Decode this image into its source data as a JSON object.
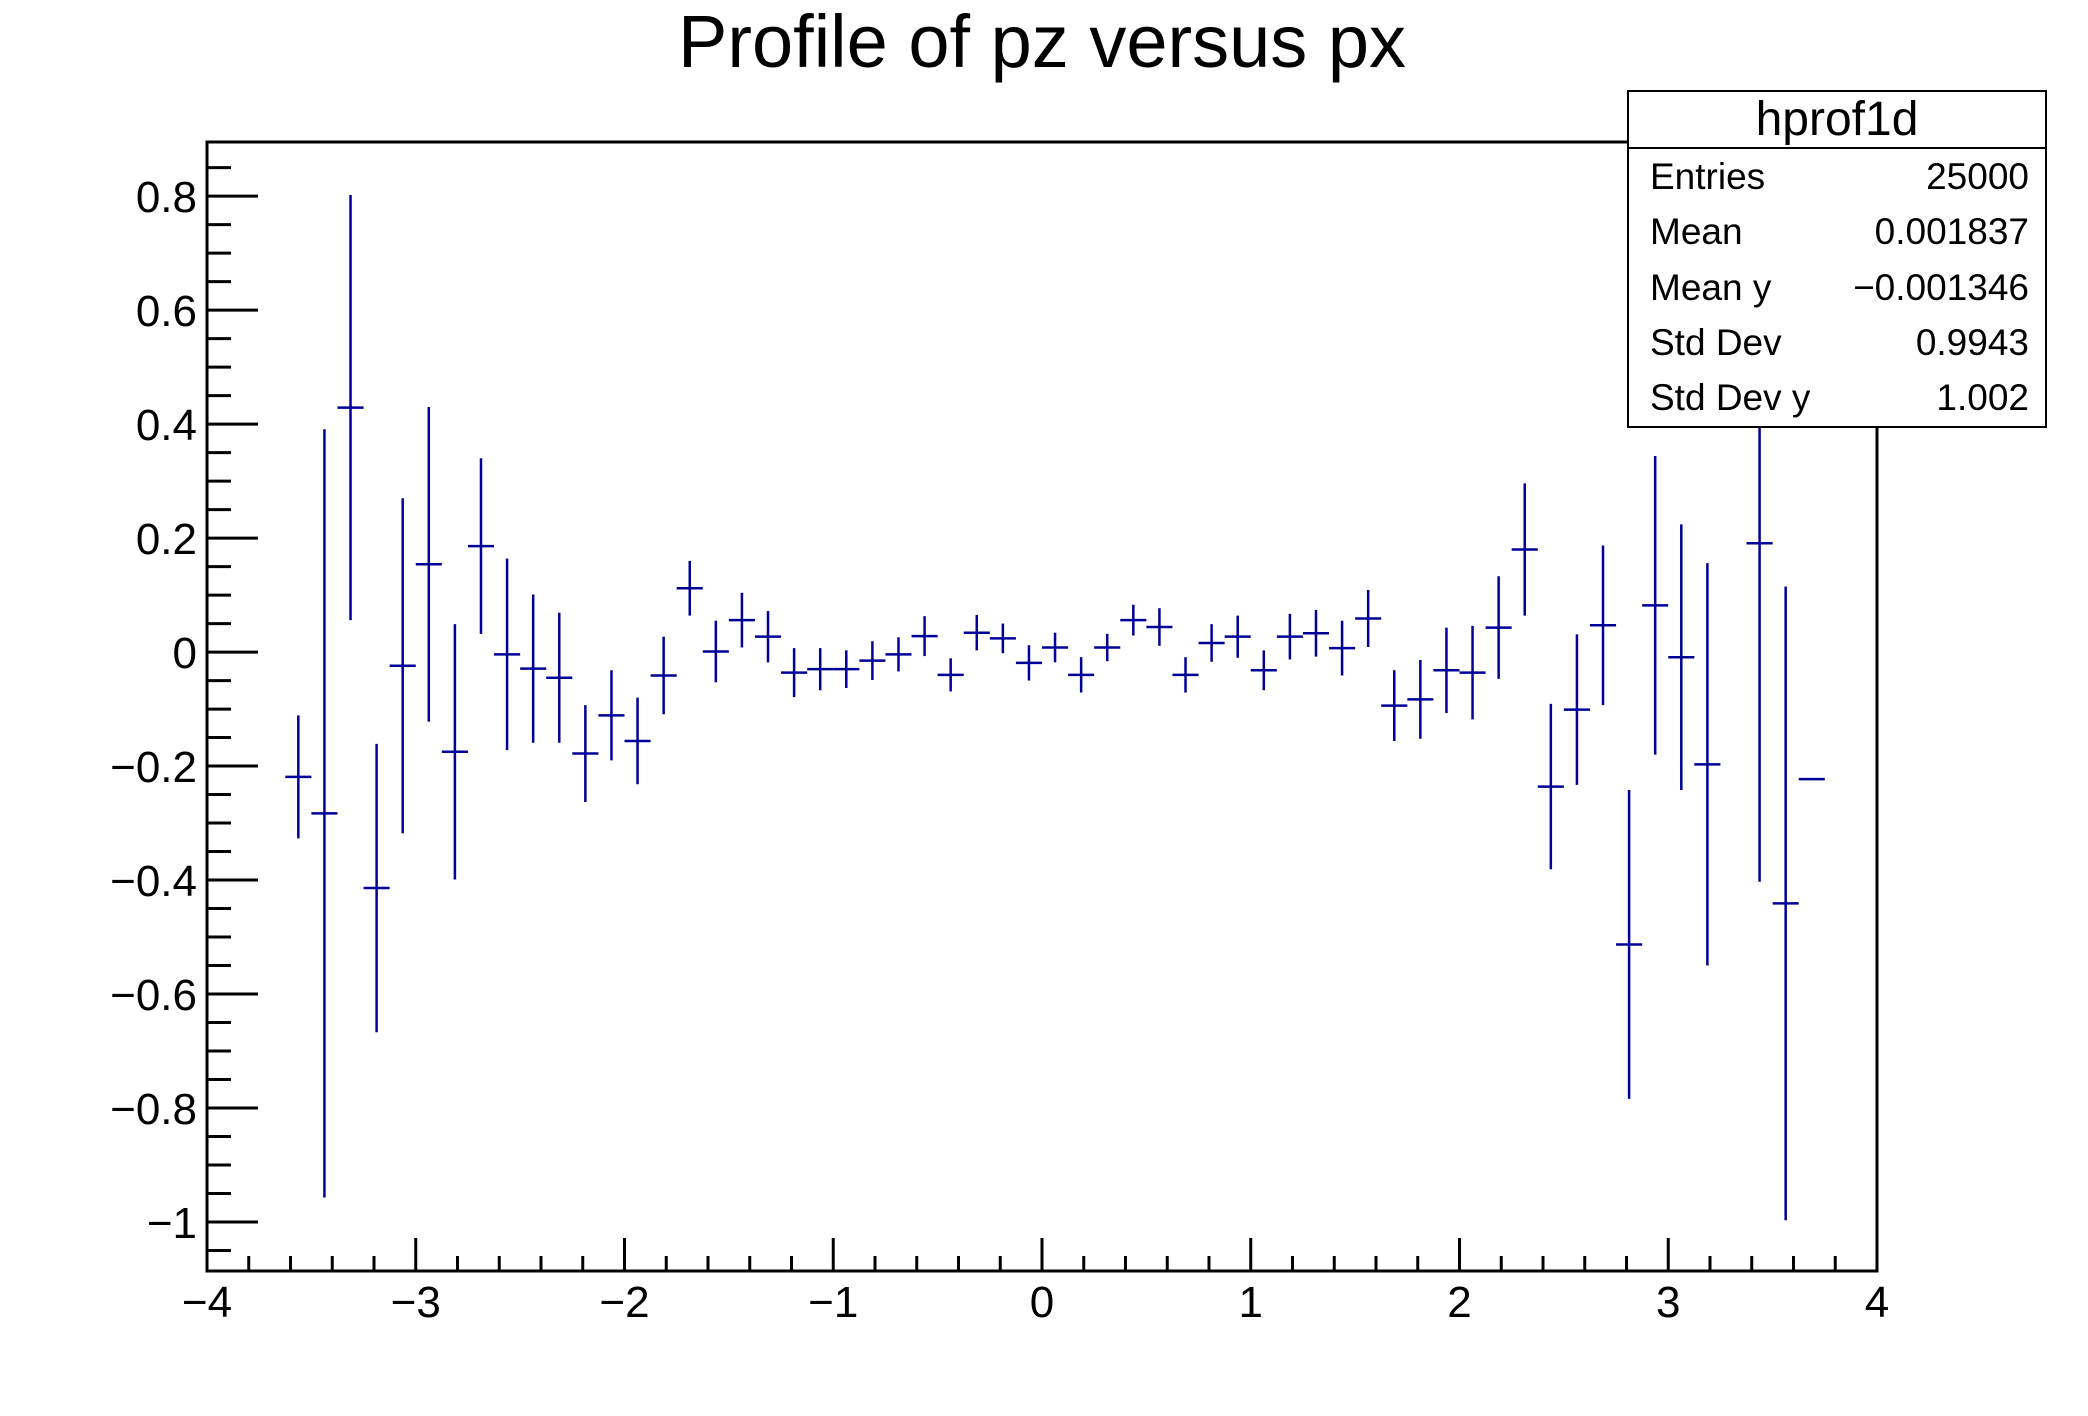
{
  "chart_data": {
    "type": "scatter",
    "subtype": "profile-histogram-with-error-bars",
    "title": "Profile of pz versus px",
    "xlabel": "",
    "ylabel": "",
    "grid": false,
    "xlim": [
      -4,
      4
    ],
    "ylim": [
      -1.086,
      0.895
    ],
    "x_minor_step": 0.2,
    "y_minor_step": 0.05,
    "bin_half_width": 0.0625,
    "series_color": "#000099",
    "x_major_ticks": [
      {
        "v": -4,
        "label": "−4"
      },
      {
        "v": -3,
        "label": "−3"
      },
      {
        "v": -2,
        "label": "−2"
      },
      {
        "v": -1,
        "label": "−1"
      },
      {
        "v": 0,
        "label": "0"
      },
      {
        "v": 1,
        "label": "1"
      },
      {
        "v": 2,
        "label": "2"
      },
      {
        "v": 3,
        "label": "3"
      },
      {
        "v": 4,
        "label": "4"
      }
    ],
    "y_major_ticks": [
      {
        "v": 0.8,
        "label": "0.8"
      },
      {
        "v": 0.6,
        "label": "0.6"
      },
      {
        "v": 0.4,
        "label": "0.4"
      },
      {
        "v": 0.2,
        "label": "0.2"
      },
      {
        "v": 0,
        "label": "0"
      },
      {
        "v": -0.2,
        "label": "−0.2"
      },
      {
        "v": -0.4,
        "label": "−0.4"
      },
      {
        "v": -0.6,
        "label": "−0.6"
      },
      {
        "v": -0.8,
        "label": "−0.8"
      },
      {
        "v": -1,
        "label": "−1"
      }
    ],
    "points": [
      {
        "x": -3.5625,
        "y": -0.219,
        "err": 0.108
      },
      {
        "x": -3.4375,
        "y": -0.283,
        "err": 0.674
      },
      {
        "x": -3.3125,
        "y": 0.429,
        "err": 0.373
      },
      {
        "x": -3.1875,
        "y": -0.414,
        "err": 0.253
      },
      {
        "x": -3.0625,
        "y": -0.024,
        "err": 0.294
      },
      {
        "x": -2.9375,
        "y": 0.154,
        "err": 0.276
      },
      {
        "x": -2.8125,
        "y": -0.175,
        "err": 0.224
      },
      {
        "x": -2.6875,
        "y": 0.186,
        "err": 0.154
      },
      {
        "x": -2.5625,
        "y": -0.004,
        "err": 0.168
      },
      {
        "x": -2.4375,
        "y": -0.029,
        "err": 0.13
      },
      {
        "x": -2.3125,
        "y": -0.045,
        "err": 0.114
      },
      {
        "x": -2.1875,
        "y": -0.178,
        "err": 0.085
      },
      {
        "x": -2.0625,
        "y": -0.111,
        "err": 0.079
      },
      {
        "x": -1.9375,
        "y": -0.156,
        "err": 0.076
      },
      {
        "x": -1.8125,
        "y": -0.041,
        "err": 0.068
      },
      {
        "x": -1.6875,
        "y": 0.112,
        "err": 0.048
      },
      {
        "x": -1.5625,
        "y": 0.001,
        "err": 0.054
      },
      {
        "x": -1.4375,
        "y": 0.056,
        "err": 0.048
      },
      {
        "x": -1.3125,
        "y": 0.027,
        "err": 0.045
      },
      {
        "x": -1.1875,
        "y": -0.036,
        "err": 0.043
      },
      {
        "x": -1.0625,
        "y": -0.03,
        "err": 0.037
      },
      {
        "x": -0.9375,
        "y": -0.03,
        "err": 0.033
      },
      {
        "x": -0.8125,
        "y": -0.015,
        "err": 0.034
      },
      {
        "x": -0.6875,
        "y": -0.004,
        "err": 0.03
      },
      {
        "x": -0.5625,
        "y": 0.028,
        "err": 0.035
      },
      {
        "x": -0.4375,
        "y": -0.04,
        "err": 0.029
      },
      {
        "x": -0.3125,
        "y": 0.034,
        "err": 0.031
      },
      {
        "x": -0.1875,
        "y": 0.024,
        "err": 0.026
      },
      {
        "x": -0.0625,
        "y": -0.019,
        "err": 0.031
      },
      {
        "x": 0.0625,
        "y": 0.008,
        "err": 0.026
      },
      {
        "x": 0.1875,
        "y": -0.04,
        "err": 0.031
      },
      {
        "x": 0.3125,
        "y": 0.008,
        "err": 0.024
      },
      {
        "x": 0.4375,
        "y": 0.056,
        "err": 0.027
      },
      {
        "x": 0.5625,
        "y": 0.044,
        "err": 0.033
      },
      {
        "x": 0.6875,
        "y": -0.04,
        "err": 0.031
      },
      {
        "x": 0.8125,
        "y": 0.016,
        "err": 0.033
      },
      {
        "x": 0.9375,
        "y": 0.027,
        "err": 0.037
      },
      {
        "x": 1.0625,
        "y": -0.032,
        "err": 0.035
      },
      {
        "x": 1.1875,
        "y": 0.027,
        "err": 0.04
      },
      {
        "x": 1.3125,
        "y": 0.033,
        "err": 0.041
      },
      {
        "x": 1.4375,
        "y": 0.007,
        "err": 0.048
      },
      {
        "x": 1.5625,
        "y": 0.059,
        "err": 0.05
      },
      {
        "x": 1.6875,
        "y": -0.094,
        "err": 0.062
      },
      {
        "x": 1.8125,
        "y": -0.083,
        "err": 0.069
      },
      {
        "x": 1.9375,
        "y": -0.032,
        "err": 0.075
      },
      {
        "x": 2.0625,
        "y": -0.036,
        "err": 0.082
      },
      {
        "x": 2.1875,
        "y": 0.043,
        "err": 0.09
      },
      {
        "x": 2.3125,
        "y": 0.18,
        "err": 0.116
      },
      {
        "x": 2.4375,
        "y": -0.236,
        "err": 0.145
      },
      {
        "x": 2.5625,
        "y": -0.101,
        "err": 0.132
      },
      {
        "x": 2.6875,
        "y": 0.047,
        "err": 0.14
      },
      {
        "x": 2.8125,
        "y": -0.513,
        "err": 0.271
      },
      {
        "x": 2.9375,
        "y": 0.082,
        "err": 0.262
      },
      {
        "x": 3.0625,
        "y": -0.009,
        "err": 0.233
      },
      {
        "x": 3.1875,
        "y": -0.197,
        "err": 0.353
      },
      {
        "x": 3.4375,
        "y": 0.191,
        "err": 0.594
      },
      {
        "x": 3.5625,
        "y": -0.441,
        "err": 0.556
      },
      {
        "x": 3.6875,
        "y": -0.223,
        "err": 0
      }
    ]
  },
  "stats_box": {
    "title": "hprof1d",
    "rows": [
      {
        "label": "Entries",
        "value": "25000"
      },
      {
        "label": "Mean",
        "value": "0.001837"
      },
      {
        "label": "Mean y",
        "value": "−0.001346"
      },
      {
        "label": "Std Dev",
        "value": "0.9943"
      },
      {
        "label": "Std Dev y",
        "value": "1.002"
      }
    ]
  }
}
